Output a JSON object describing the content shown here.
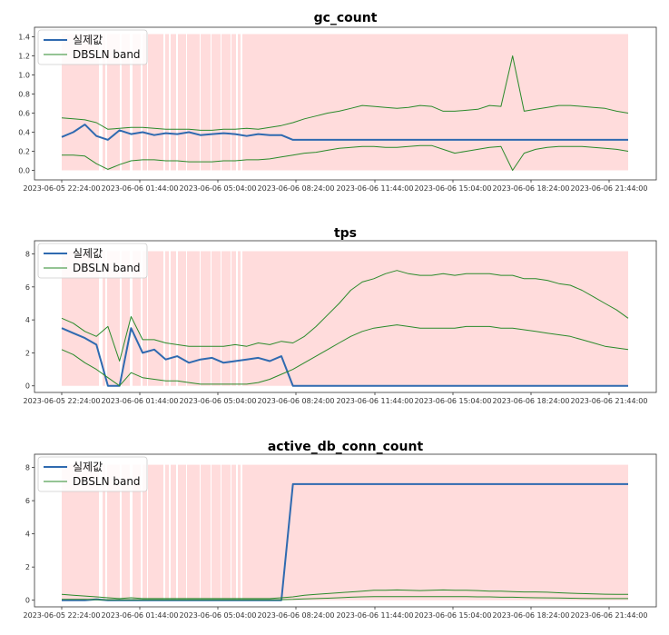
{
  "chart_data": [
    {
      "type": "line",
      "title": "gc_count",
      "xlabel": "",
      "ylabel": "",
      "x_ticks": [
        "2023-06-05 22:24:00",
        "2023-06-06 01:44:00",
        "2023-06-06 05:04:00",
        "2023-06-06 08:24:00",
        "2023-06-06 11:44:00",
        "2023-06-06 15:04:00",
        "2023-06-06 18:24:00",
        "2023-06-06 21:44:00"
      ],
      "y_ticks": [
        "0.0",
        "0.2",
        "0.4",
        "0.6",
        "0.8",
        "1.0",
        "1.2",
        "1.4"
      ],
      "ylim": [
        -0.1,
        1.5
      ],
      "legend": {
        "position": "top-left",
        "entries": [
          "실제값",
          "DBSLN band"
        ]
      },
      "anomaly_band_color": "#ffdcdc",
      "actual_color": "#2f6ab0",
      "band_color": "#2a8a2a",
      "x_hours": [
        0,
        0.5,
        1,
        1.5,
        2,
        2.5,
        3,
        3.5,
        4,
        4.5,
        5,
        5.5,
        6,
        6.5,
        7,
        7.5,
        8,
        8.5,
        9,
        9.5,
        10,
        10.5,
        11,
        11.5,
        12,
        12.5,
        13,
        13.5,
        14,
        14.5,
        15,
        15.5,
        16,
        16.5,
        17,
        17.5,
        18,
        18.5,
        19,
        19.5,
        20,
        20.5,
        21,
        21.5,
        22,
        22.5,
        23,
        23.5,
        24,
        24.5
      ],
      "series": [
        {
          "name": "실제값",
          "values": [
            0.35,
            0.4,
            0.48,
            0.36,
            0.32,
            0.42,
            0.38,
            0.4,
            0.37,
            0.39,
            0.38,
            0.4,
            0.37,
            0.38,
            0.39,
            0.38,
            0.36,
            0.38,
            0.37,
            0.37,
            0.32,
            0.32,
            0.32,
            0.32,
            0.32,
            0.32,
            0.32,
            0.32,
            0.32,
            0.32,
            0.32,
            0.32,
            0.32,
            0.32,
            0.32,
            0.32,
            0.32,
            0.32,
            0.32,
            0.32,
            0.32,
            0.32,
            0.32,
            0.32,
            0.32,
            0.32,
            0.32,
            0.32,
            0.32,
            0.32
          ]
        },
        {
          "name": "DBSLN band upper",
          "values": [
            0.55,
            0.54,
            0.53,
            0.5,
            0.43,
            0.44,
            0.45,
            0.45,
            0.44,
            0.43,
            0.43,
            0.43,
            0.42,
            0.42,
            0.43,
            0.43,
            0.44,
            0.43,
            0.45,
            0.47,
            0.5,
            0.54,
            0.57,
            0.6,
            0.62,
            0.65,
            0.68,
            0.67,
            0.66,
            0.65,
            0.66,
            0.68,
            0.67,
            0.62,
            0.62,
            0.63,
            0.64,
            0.68,
            0.67,
            1.2,
            0.62,
            0.64,
            0.66,
            0.68,
            0.68,
            0.67,
            0.66,
            0.65,
            0.62,
            0.6
          ]
        },
        {
          "name": "DBSLN band lower",
          "values": [
            0.16,
            0.16,
            0.15,
            0.07,
            0.01,
            0.06,
            0.1,
            0.11,
            0.11,
            0.1,
            0.1,
            0.09,
            0.09,
            0.09,
            0.1,
            0.1,
            0.11,
            0.11,
            0.12,
            0.14,
            0.16,
            0.18,
            0.19,
            0.21,
            0.23,
            0.24,
            0.25,
            0.25,
            0.24,
            0.24,
            0.25,
            0.26,
            0.26,
            0.22,
            0.18,
            0.2,
            0.22,
            0.24,
            0.25,
            0.0,
            0.18,
            0.22,
            0.24,
            0.25,
            0.25,
            0.25,
            0.24,
            0.23,
            0.22,
            0.2
          ]
        }
      ]
    },
    {
      "type": "line",
      "title": "tps",
      "xlabel": "",
      "ylabel": "",
      "x_ticks": [
        "2023-06-05 22:24:00",
        "2023-06-06 01:44:00",
        "2023-06-06 05:04:00",
        "2023-06-06 08:24:00",
        "2023-06-06 11:44:00",
        "2023-06-06 15:04:00",
        "2023-06-06 18:24:00",
        "2023-06-06 21:44:00"
      ],
      "y_ticks": [
        "0",
        "2",
        "4",
        "6",
        "8"
      ],
      "ylim": [
        -0.4,
        8.8
      ],
      "legend": {
        "position": "top-left",
        "entries": [
          "실제값",
          "DBSLN band"
        ]
      },
      "anomaly_band_color": "#ffdcdc",
      "actual_color": "#2f6ab0",
      "band_color": "#2a8a2a",
      "x_hours": [
        0,
        0.5,
        1,
        1.5,
        2,
        2.5,
        3,
        3.5,
        4,
        4.5,
        5,
        5.5,
        6,
        6.5,
        7,
        7.5,
        8,
        8.5,
        9,
        9.5,
        10,
        10.5,
        11,
        11.5,
        12,
        12.5,
        13,
        13.5,
        14,
        14.5,
        15,
        15.5,
        16,
        16.5,
        17,
        17.5,
        18,
        18.5,
        19,
        19.5,
        20,
        20.5,
        21,
        21.5,
        22,
        22.5,
        23,
        23.5,
        24,
        24.5
      ],
      "series": [
        {
          "name": "실제값",
          "values": [
            3.5,
            3.2,
            2.9,
            2.5,
            0.0,
            0.0,
            3.5,
            2.0,
            2.2,
            1.6,
            1.8,
            1.4,
            1.6,
            1.7,
            1.4,
            1.5,
            1.6,
            1.7,
            1.5,
            1.8,
            0.0,
            0.0,
            0.0,
            0.0,
            0.0,
            0.0,
            0.0,
            0.0,
            0.0,
            0.0,
            0.0,
            0.0,
            0.0,
            0.0,
            0.0,
            0.0,
            0.0,
            0.0,
            0.0,
            0.0,
            0.0,
            0.0,
            0.0,
            0.0,
            0.0,
            0.0,
            0.0,
            0.0,
            0.0,
            0.0
          ]
        },
        {
          "name": "DBSLN band upper",
          "values": [
            4.1,
            3.8,
            3.3,
            3.0,
            3.6,
            1.5,
            4.2,
            2.8,
            2.8,
            2.6,
            2.5,
            2.4,
            2.4,
            2.4,
            2.4,
            2.5,
            2.4,
            2.6,
            2.5,
            2.7,
            2.6,
            3.0,
            3.6,
            4.3,
            5.0,
            5.8,
            6.3,
            6.5,
            6.8,
            7.0,
            6.8,
            6.7,
            6.7,
            6.8,
            6.7,
            6.8,
            6.8,
            6.8,
            6.7,
            6.7,
            6.5,
            6.5,
            6.4,
            6.2,
            6.1,
            5.8,
            5.4,
            5.0,
            4.6,
            4.1
          ]
        },
        {
          "name": "DBSLN band lower",
          "values": [
            2.2,
            1.9,
            1.4,
            1.0,
            0.5,
            0.0,
            0.8,
            0.5,
            0.4,
            0.3,
            0.3,
            0.2,
            0.1,
            0.1,
            0.1,
            0.1,
            0.1,
            0.2,
            0.4,
            0.7,
            1.0,
            1.4,
            1.8,
            2.2,
            2.6,
            3.0,
            3.3,
            3.5,
            3.6,
            3.7,
            3.6,
            3.5,
            3.5,
            3.5,
            3.5,
            3.6,
            3.6,
            3.6,
            3.5,
            3.5,
            3.4,
            3.3,
            3.2,
            3.1,
            3.0,
            2.8,
            2.6,
            2.4,
            2.3,
            2.2
          ]
        }
      ]
    },
    {
      "type": "line",
      "title": "active_db_conn_count",
      "xlabel": "",
      "ylabel": "",
      "x_ticks": [
        "2023-06-05 22:24:00",
        "2023-06-06 01:44:00",
        "2023-06-06 05:04:00",
        "2023-06-06 08:24:00",
        "2023-06-06 11:44:00",
        "2023-06-06 15:04:00",
        "2023-06-06 18:24:00",
        "2023-06-06 21:44:00"
      ],
      "y_ticks": [
        "0",
        "2",
        "4",
        "6",
        "8"
      ],
      "ylim": [
        -0.4,
        8.8
      ],
      "legend": {
        "position": "top-left",
        "entries": [
          "실제값",
          "DBSLN band"
        ]
      },
      "anomaly_band_color": "#ffdcdc",
      "actual_color": "#2f6ab0",
      "band_color": "#2a8a2a",
      "x_hours": [
        0,
        0.5,
        1,
        1.5,
        2,
        2.5,
        3,
        3.5,
        4,
        4.5,
        5,
        5.5,
        6,
        6.5,
        7,
        7.5,
        8,
        8.5,
        9,
        9.5,
        10,
        10.5,
        11,
        11.5,
        12,
        12.5,
        13,
        13.5,
        14,
        14.5,
        15,
        15.5,
        16,
        16.5,
        17,
        17.5,
        18,
        18.5,
        19,
        19.5,
        20,
        20.5,
        21,
        21.5,
        22,
        22.5,
        23,
        23.5,
        24,
        24.5
      ],
      "series": [
        {
          "name": "실제값",
          "values": [
            0.0,
            0.0,
            0.0,
            0.05,
            0.0,
            0.0,
            0.0,
            0.0,
            0.0,
            0.0,
            0.0,
            0.0,
            0.0,
            0.0,
            0.0,
            0.0,
            0.0,
            0.0,
            0.0,
            0.0,
            7.0,
            7.0,
            7.0,
            7.0,
            7.0,
            7.0,
            7.0,
            7.0,
            7.0,
            7.0,
            7.0,
            7.0,
            7.0,
            7.0,
            7.0,
            7.0,
            7.0,
            7.0,
            7.0,
            7.0,
            7.0,
            7.0,
            7.0,
            7.0,
            7.0,
            7.0,
            7.0,
            7.0,
            7.0,
            7.0
          ]
        },
        {
          "name": "DBSLN band upper",
          "values": [
            0.35,
            0.3,
            0.25,
            0.2,
            0.15,
            0.1,
            0.15,
            0.1,
            0.1,
            0.1,
            0.1,
            0.1,
            0.1,
            0.1,
            0.1,
            0.1,
            0.1,
            0.1,
            0.1,
            0.15,
            0.2,
            0.3,
            0.35,
            0.4,
            0.45,
            0.5,
            0.55,
            0.6,
            0.6,
            0.62,
            0.6,
            0.58,
            0.6,
            0.62,
            0.6,
            0.6,
            0.58,
            0.55,
            0.55,
            0.52,
            0.5,
            0.5,
            0.48,
            0.45,
            0.42,
            0.4,
            0.38,
            0.36,
            0.35,
            0.35
          ]
        },
        {
          "name": "DBSLN band lower",
          "values": [
            0.05,
            0.05,
            0.05,
            0.03,
            0.02,
            0.02,
            0.02,
            0.02,
            0.02,
            0.02,
            0.02,
            0.02,
            0.02,
            0.02,
            0.02,
            0.02,
            0.02,
            0.02,
            0.02,
            0.03,
            0.05,
            0.08,
            0.1,
            0.12,
            0.15,
            0.18,
            0.2,
            0.22,
            0.22,
            0.22,
            0.22,
            0.22,
            0.22,
            0.22,
            0.22,
            0.22,
            0.2,
            0.2,
            0.18,
            0.18,
            0.16,
            0.15,
            0.14,
            0.13,
            0.12,
            0.11,
            0.1,
            0.1,
            0.1,
            0.1
          ]
        }
      ]
    }
  ]
}
